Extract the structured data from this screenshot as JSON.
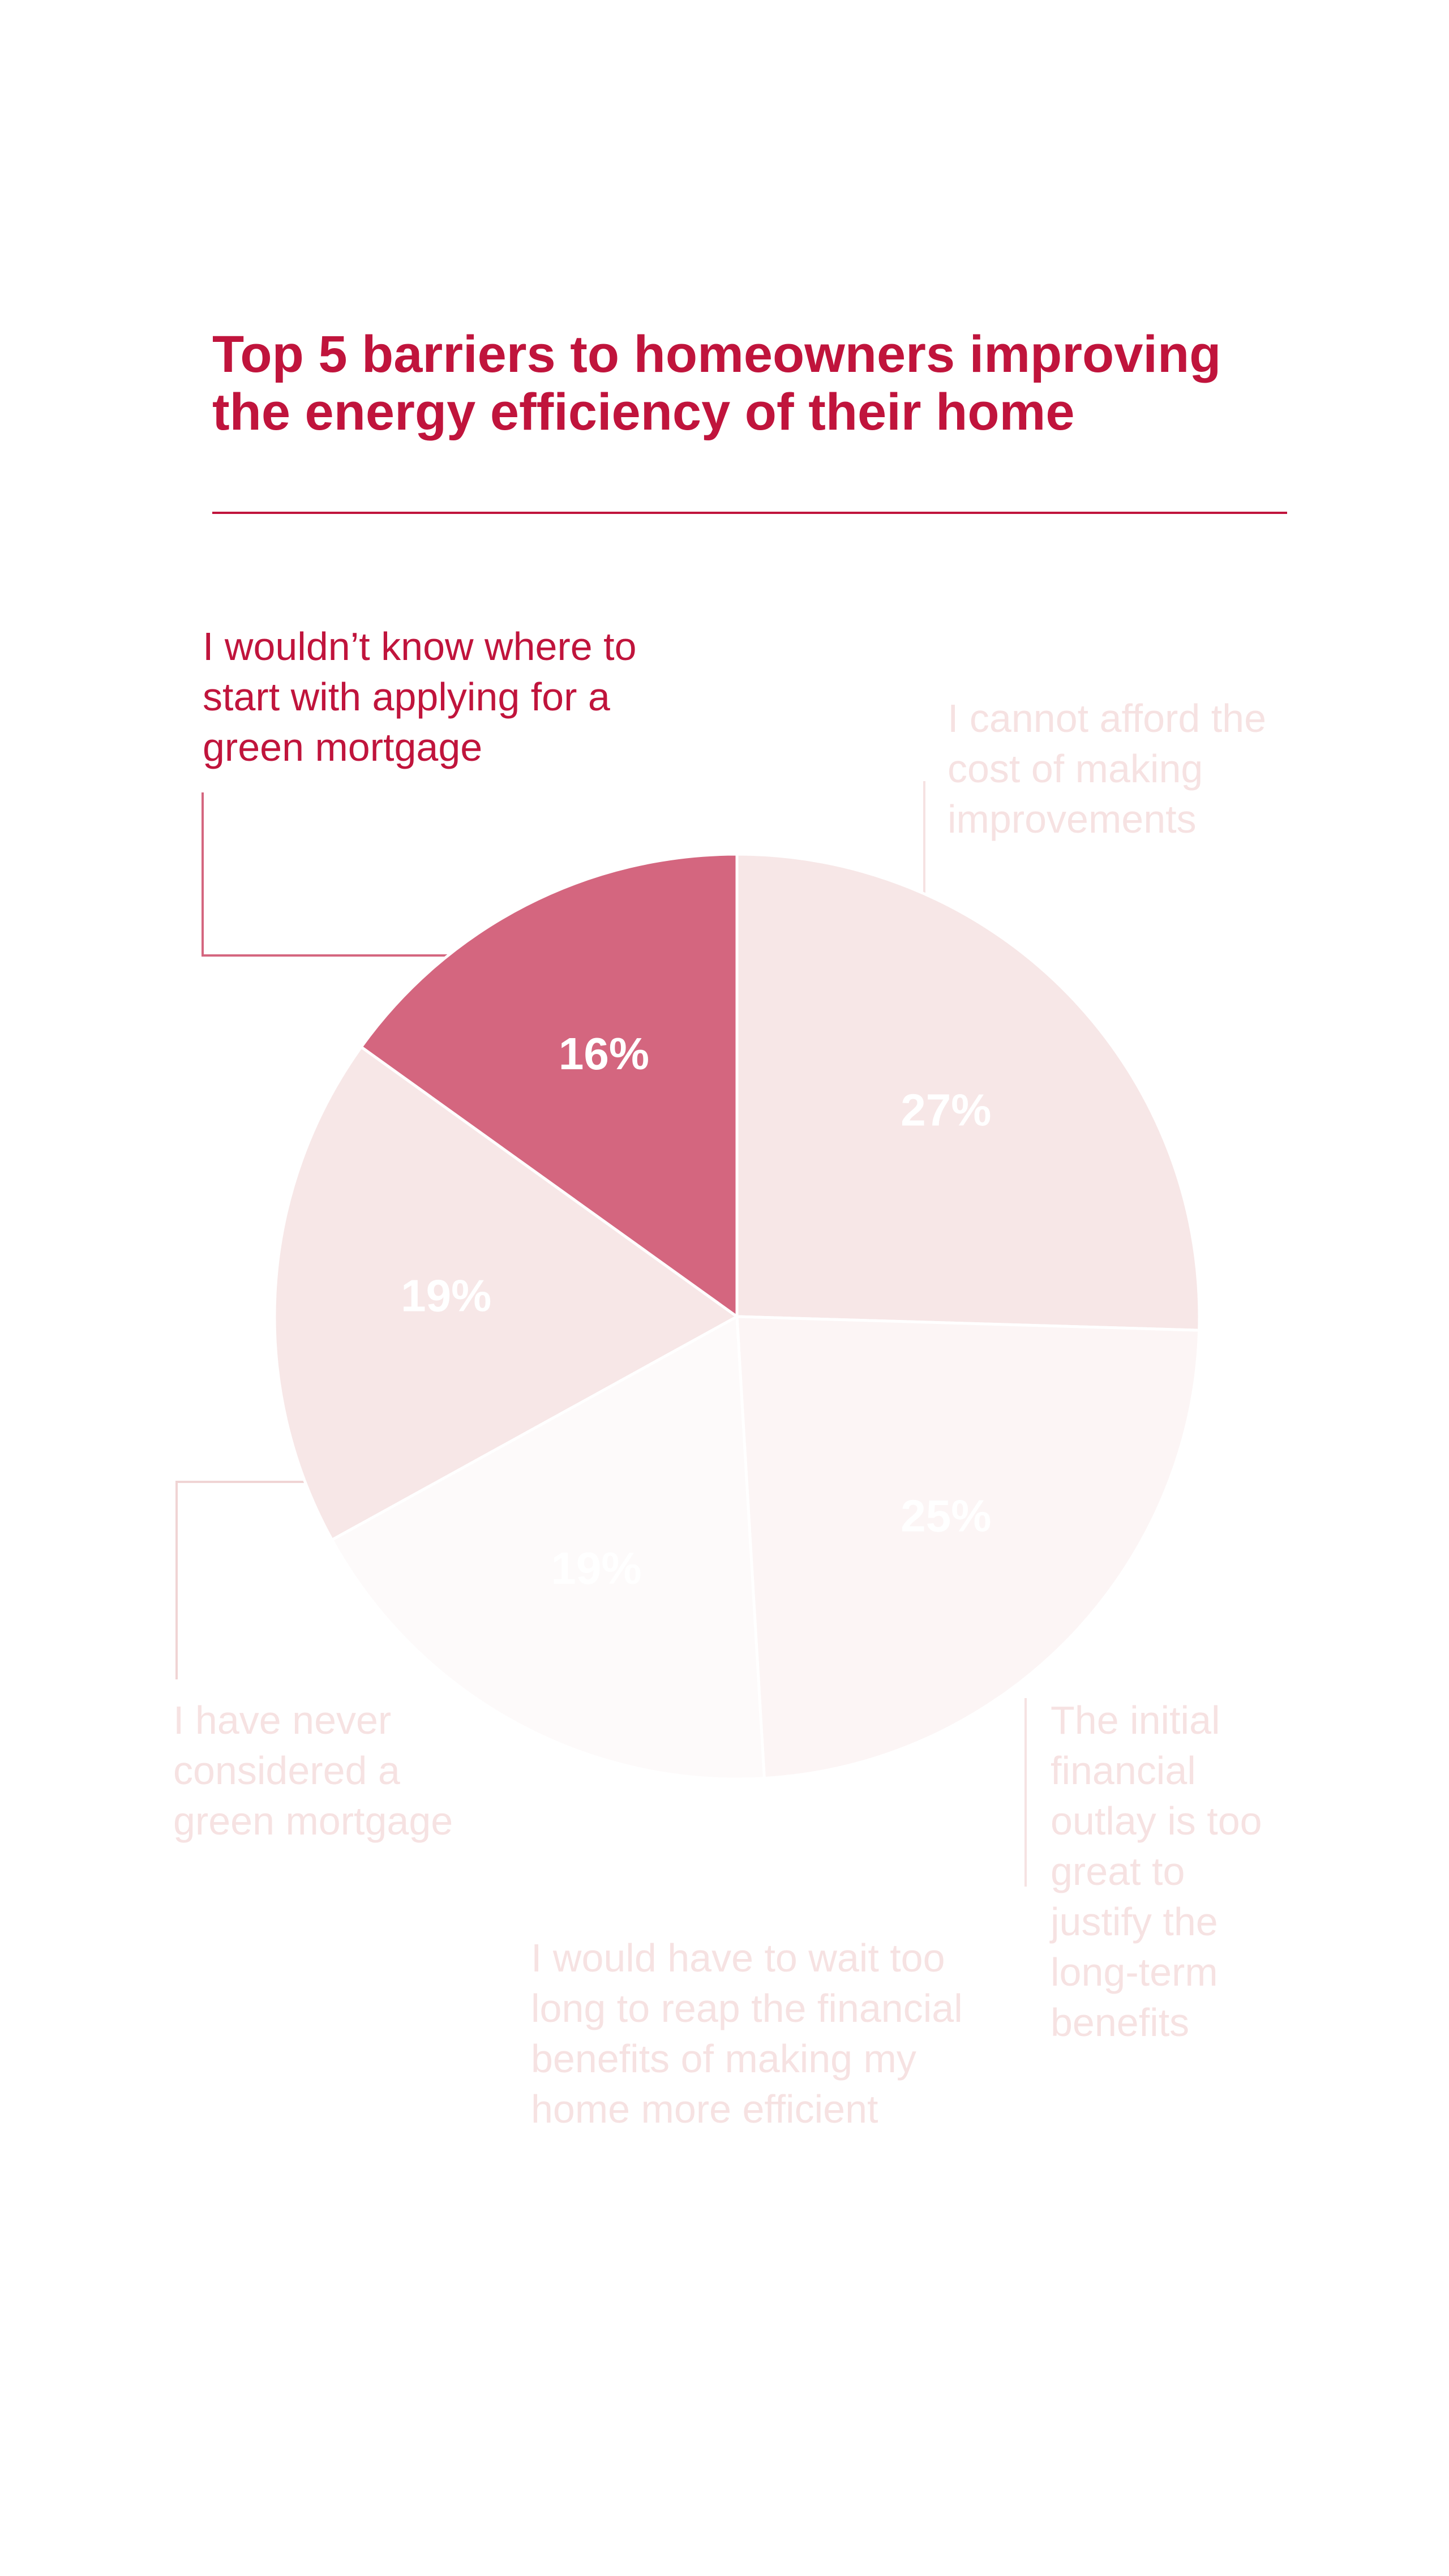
{
  "chart_data": {
    "type": "pie",
    "title": "Top 5 barriers to homeowners improving the energy efficiency of their home",
    "categories": [
      "I cannot afford the cost of making improvements",
      "The initial financial outlay is too great to justify the long-term benefits",
      "I would have to wait too long to reap the financial benefits of making my home more efficient",
      "I have never considered a green mortgage",
      "I wouldn’t know where to start with applying for a green mortgage"
    ],
    "values": [
      27,
      25,
      19,
      19,
      16
    ],
    "value_labels": [
      "27%",
      "25%",
      "19%",
      "19%",
      "16%"
    ],
    "colors": [
      "#f7e7e7",
      "#fcf5f5",
      "#fdfafa",
      "#f7e7e7",
      "#d4667f"
    ],
    "label_colors": [
      "#f6e2e2",
      "#f6e2e2",
      "#f6e2e2",
      "#f6e2e2",
      "#c0143c"
    ]
  }
}
